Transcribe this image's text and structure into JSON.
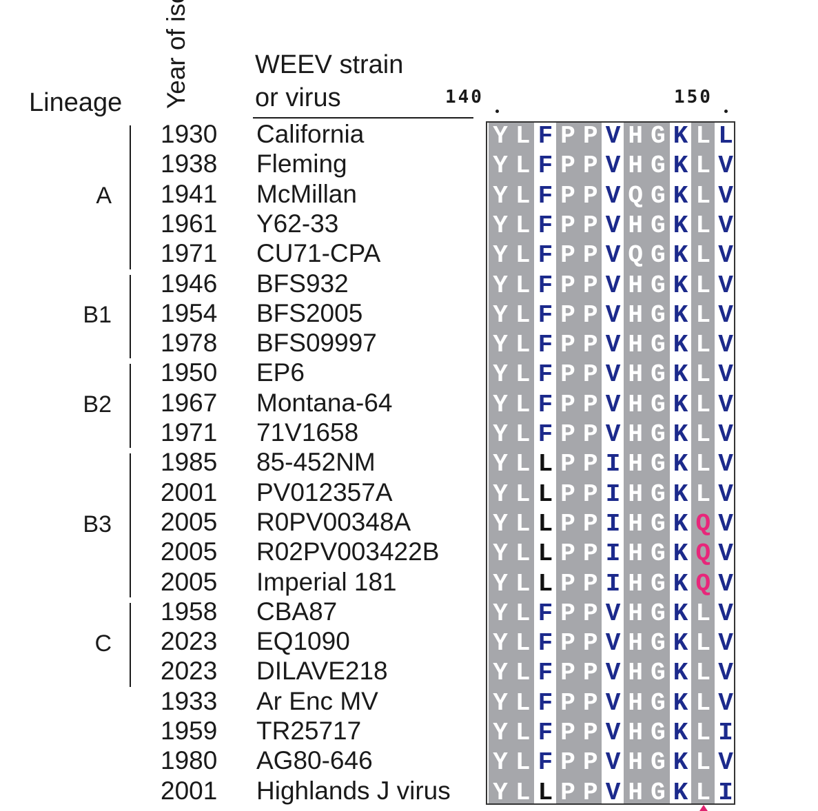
{
  "headers": {
    "lineage": "Lineage",
    "year": "Year of isolation",
    "strain_line1": "WEEV strain",
    "strain_line2": "or virus"
  },
  "ruler": {
    "label_140": "140",
    "label_150": "150"
  },
  "lineages": [
    {
      "label": "A",
      "first_row": 0,
      "last_row": 4
    },
    {
      "label": "B1",
      "first_row": 5,
      "last_row": 7
    },
    {
      "label": "B2",
      "first_row": 8,
      "last_row": 10
    },
    {
      "label": "B3",
      "first_row": 11,
      "last_row": 15
    },
    {
      "label": "C",
      "first_row": 16,
      "last_row": 18
    }
  ],
  "rows": [
    {
      "year": "1930",
      "strain": "California",
      "seq": "YLFPPVHGKLL"
    },
    {
      "year": "1938",
      "strain": "Fleming",
      "seq": "YLFPPVHGKLV"
    },
    {
      "year": "1941",
      "strain": "McMillan",
      "seq": "YLFPPVQGKLV"
    },
    {
      "year": "1961",
      "strain": "Y62-33",
      "seq": "YLFPPVHGKLV"
    },
    {
      "year": "1971",
      "strain": "CU71-CPA",
      "seq": "YLFPPVQGKLV"
    },
    {
      "year": "1946",
      "strain": "BFS932",
      "seq": "YLFPPVHGKLV"
    },
    {
      "year": "1954",
      "strain": "BFS2005",
      "seq": "YLFPPVHGKLV"
    },
    {
      "year": "1978",
      "strain": "BFS09997",
      "seq": "YLFPPVHGKLV"
    },
    {
      "year": "1950",
      "strain": "EP6",
      "seq": "YLFPPVHGKLV"
    },
    {
      "year": "1967",
      "strain": "Montana-64",
      "seq": "YLFPPVHGKLV"
    },
    {
      "year": "1971",
      "strain": "71V1658",
      "seq": "YLFPPVHGKLV"
    },
    {
      "year": "1985",
      "strain": "85-452NM",
      "seq": "YLLPPIHGKLV"
    },
    {
      "year": "2001",
      "strain": "PV012357A",
      "seq": "YLLPPIHGKLV"
    },
    {
      "year": "2005",
      "strain": "R0PV00348A",
      "seq": "YLLPPIHGKQV"
    },
    {
      "year": "2005",
      "strain": "R02PV003422B",
      "seq": "YLLPPIHGKQV"
    },
    {
      "year": "2005",
      "strain": "Imperial 181",
      "seq": "YLLPPIHGKQV"
    },
    {
      "year": "1958",
      "strain": "CBA87",
      "seq": "YLFPPVHGKLV"
    },
    {
      "year": "2023",
      "strain": "EQ1090",
      "seq": "YLFPPVHGKLV"
    },
    {
      "year": "2023",
      "strain": "DILAVE218",
      "seq": "YLFPPVHGKLV"
    },
    {
      "year": "1933",
      "strain": "Ar Enc MV",
      "seq": "YLFPPVHGKLV"
    },
    {
      "year": "1959",
      "strain": "TR25717",
      "seq": "YLFPPVHGKLI"
    },
    {
      "year": "1980",
      "strain": "AG80-646",
      "seq": "YLFPPVHGKLV"
    },
    {
      "year": "2001",
      "strain": "Highlands J virus",
      "seq": "YLLPPVHGKLI"
    }
  ],
  "colors": {
    "shade": "#a6a7ab",
    "residue_blue": "#1c2a8c",
    "residue_black": "#111111",
    "residue_white": "#ffffff",
    "substitution_pink": "#e8267a",
    "marker": "#e0236f"
  }
}
